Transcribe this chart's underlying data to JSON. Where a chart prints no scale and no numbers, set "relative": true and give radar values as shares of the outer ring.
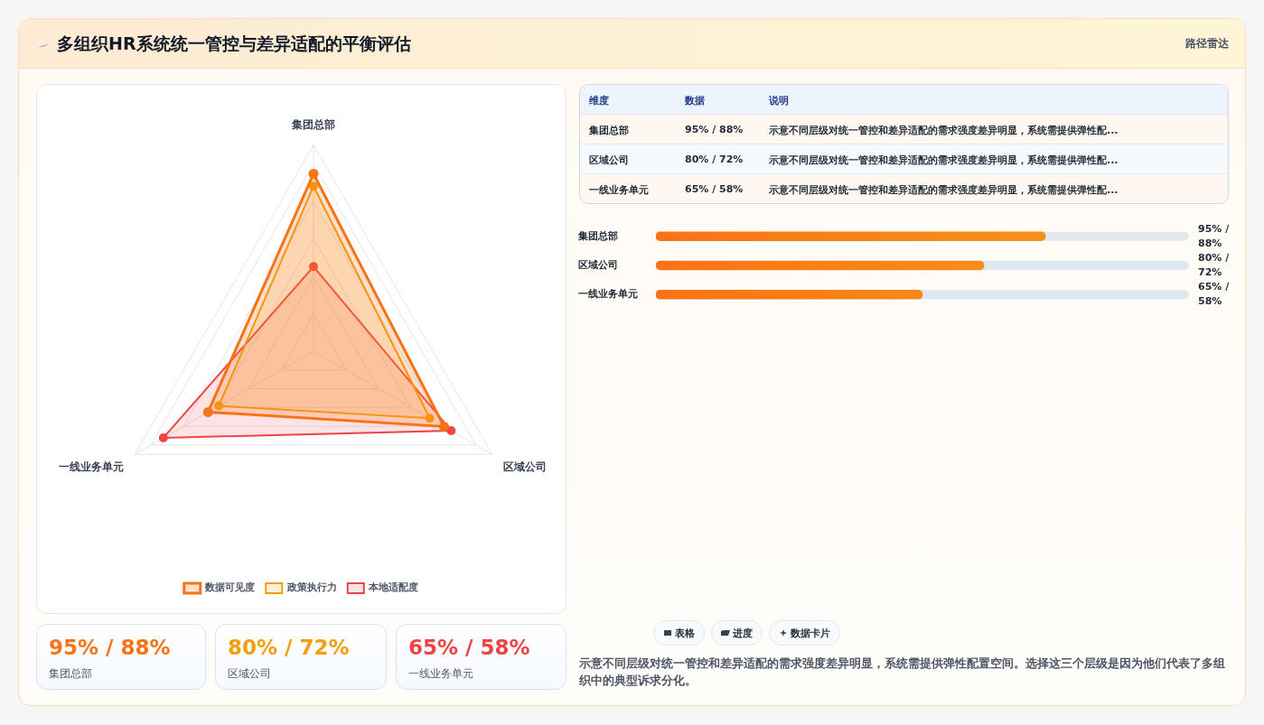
{
  "chart_data": [
    {
      "type": "radar",
      "title": "多组织HR系统统一管控与差异适配的平衡评估",
      "categories": [
        "集团总部",
        "区域公司",
        "一线业务单元"
      ],
      "relative": true,
      "legend": "bottom",
      "marker": "circle",
      "series": [
        {
          "name": "数据可见度",
          "color": "#f97316",
          "values": [
            0.86,
            0.73,
            0.59
          ]
        },
        {
          "name": "政策执行力",
          "color": "#f59e0b",
          "values": [
            0.8,
            0.65,
            0.53
          ]
        },
        {
          "name": "本地适配度",
          "color": "#ef4444",
          "values": [
            0.41,
            0.77,
            0.84
          ]
        }
      ]
    },
    {
      "type": "other",
      "subtitle": "路径雷达",
      "annotations": [
        "维度",
        "数据",
        "说明",
        "集团总部",
        "95% / 88%",
        "示意不同层级对统一管控和差异适配的需求强度差异明显，系统需提供弹性配...",
        "区域公司",
        "80% / 72%",
        "示意不同层级对统一管控和差异适配的需求强度差异明显，系统需提供弹性配...",
        "一线业务单元",
        "65% / 58%",
        "示意不同层级对统一管控和差异适配的需求强度差异明显，系统需提供弹性配..."
      ]
    },
    {
      "type": "bar",
      "orientation": "horizontal",
      "categories": [
        "集团总部",
        "区域公司",
        "一线业务单元"
      ],
      "values": [
        95,
        80,
        65
      ],
      "value_labels": [
        "95% / 88%",
        "80% / 72%",
        "65% / 58%"
      ],
      "color": "#f7931a",
      "xlim": [
        0,
        130
      ],
      "tick_labels": "y"
    },
    {
      "type": "other",
      "annotations": [
        "95% / 88%",
        "集团总部",
        "80% / 72%",
        "区域公司",
        "65% / 58%",
        "一线业务单元"
      ],
      "colors": [
        "#f97316",
        "#f59e0b",
        "#ef4444"
      ]
    },
    {
      "type": "other",
      "annotations": [
        "表格",
        "进度",
        "数据卡片",
        "示意不同层级对统一管控和差异适配的需求强度差异明显，系统需提供弹性配置空间。选择这三个层级是因为他们代表了多组织中的典型诉求分化。"
      ]
    }
  ]
}
